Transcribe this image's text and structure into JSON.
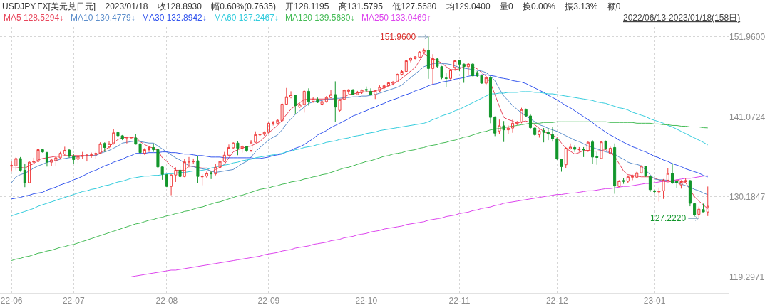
{
  "chart_data": {
    "type": "candlestick",
    "title": "USDJPY.FX[美元兑日元] 2023/01/18 收128.8930 幅0.60%(0.7635) 开128.1195 高131.5795 低127.5680 均129.0400 量0 换0.00% 振3.13% 额0",
    "subtitle": "2022/06/13-2023/01/18(158日)",
    "categories": [
      "22-06",
      null,
      null,
      null,
      null,
      null,
      null,
      null,
      null,
      null,
      null,
      null,
      null,
      null,
      "22-07",
      null,
      null,
      null,
      null,
      null,
      null,
      null,
      null,
      null,
      null,
      null,
      null,
      null,
      null,
      null,
      null,
      null,
      null,
      null,
      null,
      "22-08",
      null,
      null,
      null,
      null,
      null,
      null,
      null,
      null,
      null,
      null,
      null,
      null,
      null,
      null,
      null,
      null,
      null,
      null,
      null,
      null,
      null,
      null,
      "22-09",
      null,
      null,
      null,
      null,
      null,
      null,
      null,
      null,
      null,
      null,
      null,
      null,
      null,
      null,
      null,
      null,
      null,
      null,
      null,
      null,
      null,
      "22-10",
      null,
      null,
      null,
      null,
      null,
      null,
      null,
      null,
      null,
      null,
      null,
      null,
      null,
      null,
      null,
      null,
      null,
      null,
      null,
      null,
      "22-11",
      null,
      null,
      null,
      null,
      null,
      null,
      null,
      null,
      null,
      null,
      null,
      null,
      null,
      null,
      null,
      null,
      null,
      null,
      null,
      null,
      null,
      "22-12",
      null,
      null,
      null,
      null,
      null,
      null,
      null,
      null,
      null,
      null,
      null,
      null,
      null,
      null,
      null,
      null,
      null,
      null,
      null,
      null,
      null,
      "23-01",
      null,
      null,
      null,
      null,
      null,
      null,
      null,
      null,
      null,
      null,
      null,
      null
    ],
    "ohlc": [
      [
        134.35,
        135.0,
        133.6,
        134.45
      ],
      [
        134.4,
        135.6,
        133.8,
        135.4
      ],
      [
        135.4,
        135.6,
        133.6,
        133.8
      ],
      [
        133.8,
        134.7,
        131.5,
        132.1
      ],
      [
        132.1,
        135.0,
        132.0,
        134.9
      ],
      [
        134.9,
        135.5,
        134.6,
        135.0
      ],
      [
        135.0,
        136.7,
        134.95,
        136.6
      ],
      [
        136.6,
        136.7,
        136.2,
        136.3
      ],
      [
        136.2,
        136.3,
        134.3,
        134.9
      ],
      [
        134.9,
        135.4,
        134.4,
        135.2
      ],
      [
        135.1,
        135.8,
        134.4,
        135.5
      ],
      [
        135.5,
        136.3,
        135.35,
        136.1
      ],
      [
        136.0,
        137.0,
        135.8,
        136.5
      ],
      [
        136.55,
        136.65,
        135.5,
        135.7
      ],
      [
        135.7,
        136.0,
        134.7,
        135.25
      ],
      [
        135.3,
        135.85,
        134.7,
        135.7
      ],
      [
        135.7,
        136.3,
        135.35,
        135.8
      ],
      [
        135.75,
        136.0,
        135.0,
        135.85
      ],
      [
        135.8,
        136.2,
        135.5,
        135.9
      ],
      [
        135.95,
        136.3,
        135.35,
        136.1
      ],
      [
        136.15,
        137.6,
        136.05,
        137.4
      ],
      [
        137.45,
        137.6,
        136.3,
        136.9
      ],
      [
        136.95,
        137.8,
        136.8,
        137.4
      ],
      [
        137.4,
        139.4,
        137.3,
        138.9
      ],
      [
        138.95,
        139.15,
        138.4,
        138.5
      ],
      [
        138.5,
        138.6,
        137.9,
        138.1
      ],
      [
        138.2,
        138.4,
        137.45,
        138.3
      ],
      [
        138.2,
        138.35,
        138.15,
        138.3
      ],
      [
        138.2,
        138.7,
        137.3,
        137.35
      ],
      [
        137.4,
        137.8,
        135.7,
        136.2
      ],
      [
        136.1,
        136.8,
        135.9,
        136.6
      ],
      [
        136.6,
        137.0,
        136.3,
        136.9
      ],
      [
        136.9,
        137.45,
        136.3,
        136.6
      ],
      [
        136.6,
        136.65,
        134.1,
        134.25
      ],
      [
        134.25,
        134.3,
        132.5,
        133.25
      ],
      [
        133.2,
        133.25,
        131.5,
        131.6
      ],
      [
        131.6,
        133.25,
        130.4,
        133.15
      ],
      [
        133.15,
        134.2,
        132.2,
        133.8
      ],
      [
        133.8,
        134.4,
        132.8,
        132.95
      ],
      [
        132.95,
        135.35,
        132.85,
        134.95
      ],
      [
        134.9,
        135.6,
        134.2,
        135.0
      ],
      [
        134.95,
        135.4,
        134.7,
        135.05
      ],
      [
        135.1,
        135.7,
        132.05,
        132.95
      ],
      [
        132.9,
        133.25,
        131.75,
        132.95
      ],
      [
        133.0,
        133.6,
        132.8,
        133.4
      ],
      [
        133.45,
        133.7,
        132.6,
        133.3
      ],
      [
        133.3,
        134.7,
        133.1,
        134.2
      ],
      [
        134.2,
        135.4,
        134.05,
        135.0
      ],
      [
        135.0,
        136.3,
        134.9,
        135.85
      ],
      [
        135.85,
        137.3,
        135.7,
        136.9
      ],
      [
        136.85,
        137.6,
        136.65,
        137.5
      ],
      [
        137.5,
        137.8,
        135.85,
        136.8
      ],
      [
        136.8,
        137.2,
        136.2,
        137.05
      ],
      [
        137.05,
        137.1,
        136.3,
        136.5
      ],
      [
        136.5,
        137.9,
        136.3,
        137.6
      ],
      [
        137.6,
        139.1,
        137.55,
        138.65
      ],
      [
        138.6,
        138.9,
        138.2,
        138.7
      ],
      [
        138.7,
        139.1,
        138.5,
        138.95
      ],
      [
        138.95,
        140.35,
        138.85,
        140.2
      ],
      [
        140.2,
        140.5,
        139.9,
        140.25
      ],
      [
        140.2,
        140.7,
        140.05,
        140.6
      ],
      [
        140.55,
        143.0,
        140.35,
        142.8
      ],
      [
        142.8,
        145.0,
        142.75,
        143.8
      ],
      [
        143.75,
        144.55,
        143.6,
        144.05
      ],
      [
        144.05,
        144.1,
        141.5,
        142.6
      ],
      [
        142.4,
        142.9,
        142.3,
        142.75
      ],
      [
        142.75,
        144.7,
        141.65,
        144.55
      ],
      [
        144.55,
        144.95,
        142.6,
        143.15
      ],
      [
        143.2,
        143.8,
        143.0,
        143.5
      ],
      [
        143.45,
        143.7,
        142.95,
        143.05
      ],
      [
        142.8,
        143.35,
        142.6,
        143.15
      ],
      [
        143.15,
        143.9,
        143.0,
        143.7
      ],
      [
        143.7,
        144.7,
        143.6,
        144.1
      ],
      [
        144.1,
        145.9,
        140.35,
        142.4
      ],
      [
        141.95,
        143.5,
        141.8,
        143.4
      ],
      [
        143.45,
        144.8,
        143.35,
        144.7
      ],
      [
        144.55,
        144.85,
        144.2,
        144.75
      ],
      [
        144.75,
        144.85,
        144.05,
        144.1
      ],
      [
        144.1,
        144.6,
        144.05,
        144.45
      ],
      [
        144.4,
        144.8,
        144.2,
        144.7
      ],
      [
        144.8,
        145.2,
        144.4,
        144.7
      ],
      [
        144.55,
        144.95,
        144.05,
        144.1
      ],
      [
        144.1,
        144.7,
        143.5,
        144.6
      ],
      [
        144.6,
        145.35,
        144.45,
        145.1
      ],
      [
        145.0,
        145.5,
        144.8,
        145.3
      ],
      [
        145.3,
        145.85,
        145.2,
        145.7
      ],
      [
        145.65,
        145.95,
        145.35,
        145.8
      ],
      [
        145.8,
        146.95,
        145.75,
        146.85
      ],
      [
        146.85,
        147.45,
        146.7,
        147.25
      ],
      [
        147.25,
        148.85,
        147.2,
        148.7
      ],
      [
        148.75,
        149.2,
        148.5,
        149.05
      ],
      [
        149.0,
        149.3,
        148.9,
        149.25
      ],
      [
        149.2,
        150.0,
        149.05,
        149.9
      ],
      [
        149.9,
        150.35,
        149.85,
        150.15
      ],
      [
        150.15,
        151.96,
        146.25,
        147.65
      ],
      [
        147.65,
        149.6,
        145.5,
        149.0
      ],
      [
        148.95,
        149.05,
        147.75,
        147.95
      ],
      [
        147.9,
        148.0,
        146.2,
        146.4
      ],
      [
        146.35,
        147.0,
        145.1,
        146.3
      ],
      [
        146.3,
        147.55,
        146.0,
        147.45
      ],
      [
        147.8,
        148.8,
        147.35,
        148.7
      ],
      [
        148.7,
        148.75,
        147.3,
        148.25
      ],
      [
        148.25,
        148.3,
        145.7,
        147.9
      ],
      [
        147.9,
        148.4,
        146.8,
        148.25
      ],
      [
        148.25,
        148.35,
        146.6,
        146.65
      ],
      [
        147.1,
        147.3,
        146.5,
        146.65
      ],
      [
        146.7,
        146.8,
        145.6,
        145.65
      ],
      [
        145.65,
        146.6,
        145.35,
        146.4
      ],
      [
        146.4,
        146.6,
        140.2,
        141.0
      ],
      [
        141.0,
        141.15,
        138.45,
        138.85
      ],
      [
        139.15,
        140.7,
        138.75,
        139.85
      ],
      [
        139.85,
        140.5,
        137.65,
        139.3
      ],
      [
        139.3,
        139.9,
        138.75,
        139.55
      ],
      [
        139.55,
        140.7,
        138.9,
        140.2
      ],
      [
        140.15,
        140.5,
        139.95,
        140.35
      ],
      [
        140.35,
        142.3,
        140.2,
        142.05
      ],
      [
        142.05,
        142.2,
        141.1,
        141.2
      ],
      [
        141.2,
        141.5,
        139.4,
        139.6
      ],
      [
        139.55,
        139.6,
        138.5,
        138.65
      ],
      [
        138.65,
        139.3,
        138.25,
        139.15
      ],
      [
        139.2,
        139.55,
        137.6,
        138.95
      ],
      [
        138.95,
        139.55,
        137.9,
        138.75
      ],
      [
        138.65,
        139.7,
        137.7,
        138.1
      ],
      [
        138.1,
        138.15,
        135.2,
        135.35
      ],
      [
        135.3,
        135.35,
        133.6,
        134.3
      ],
      [
        134.55,
        136.95,
        134.1,
        136.8
      ],
      [
        136.7,
        137.45,
        136.6,
        136.95
      ],
      [
        136.9,
        137.2,
        136.3,
        136.65
      ],
      [
        136.6,
        136.95,
        136.3,
        136.7
      ],
      [
        136.7,
        136.95,
        135.6,
        136.6
      ],
      [
        136.5,
        137.7,
        136.3,
        137.6
      ],
      [
        137.65,
        137.9,
        134.65,
        135.6
      ],
      [
        135.65,
        136.3,
        134.55,
        135.55
      ],
      [
        135.4,
        137.8,
        135.3,
        137.65
      ],
      [
        137.75,
        137.85,
        136.6,
        136.7
      ],
      [
        136.05,
        137.0,
        135.95,
        136.8
      ],
      [
        136.9,
        137.45,
        130.6,
        131.65
      ],
      [
        131.6,
        132.45,
        131.5,
        132.35
      ],
      [
        132.4,
        132.7,
        131.95,
        132.3
      ],
      [
        132.3,
        133.1,
        132.1,
        132.9
      ],
      [
        132.85,
        133.2,
        132.45,
        132.95
      ],
      [
        132.85,
        133.6,
        132.7,
        133.45
      ],
      [
        133.45,
        134.45,
        133.35,
        134.35
      ],
      [
        134.35,
        134.4,
        132.9,
        133.0
      ],
      [
        132.95,
        133.1,
        130.85,
        131.15
      ],
      [
        131.0,
        131.1,
        130.7,
        130.9
      ],
      [
        130.85,
        131.45,
        129.55,
        130.95
      ],
      [
        131.0,
        132.6,
        129.9,
        132.45
      ],
      [
        132.45,
        134.05,
        132.3,
        133.35
      ],
      [
        133.35,
        134.75,
        131.95,
        132.05
      ],
      [
        132.3,
        132.45,
        131.35,
        132.1
      ],
      [
        131.8,
        132.45,
        131.3,
        132.25
      ],
      [
        132.25,
        132.7,
        132.1,
        132.4
      ],
      [
        132.4,
        132.45,
        128.9,
        129.3
      ],
      [
        129.25,
        129.3,
        127.5,
        127.75
      ],
      [
        127.8,
        128.85,
        127.222,
        128.5
      ],
      [
        128.45,
        129.25,
        128.1,
        128.1295
      ],
      [
        128.1195,
        131.5795,
        127.568,
        128.893
      ]
    ],
    "colors": [
      "#ef3b3b",
      "#ef3b3b",
      "#12962b",
      "#12962b",
      "#ef3b3b",
      "#ef3b3b",
      "#ef3b3b",
      "#12962b",
      "#12962b",
      "#ef3b3b",
      "#ef3b3b",
      "#ef3b3b",
      "#ef3b3b",
      "#12962b",
      "#12962b",
      "#ef3b3b",
      "#ef3b3b",
      "#ef3b3b",
      "#ef3b3b",
      "#ef3b3b",
      "#ef3b3b",
      "#12962b",
      "#ef3b3b",
      "#ef3b3b",
      "#12962b",
      "#12962b",
      "#ef3b3b",
      "#ef3b3b",
      "#12962b",
      "#12962b",
      "#ef3b3b",
      "#ef3b3b",
      "#12962b",
      "#12962b",
      "#12962b",
      "#12962b",
      "#ef3b3b",
      "#ef3b3b",
      "#12962b",
      "#ef3b3b",
      "#ef3b3b",
      "#ef3b3b",
      "#12962b",
      "#ef3b3b",
      "#ef3b3b",
      "#12962b",
      "#ef3b3b",
      "#ef3b3b",
      "#ef3b3b",
      "#ef3b3b",
      "#ef3b3b",
      "#12962b",
      "#ef3b3b",
      "#12962b",
      "#ef3b3b",
      "#ef3b3b",
      "#ef3b3b",
      "#ef3b3b",
      "#ef3b3b",
      "#ef3b3b",
      "#ef3b3b",
      "#ef3b3b",
      "#ef3b3b",
      "#ef3b3b",
      "#12962b",
      "#ef3b3b",
      "#ef3b3b",
      "#12962b",
      "#ef3b3b",
      "#12962b",
      "#ef3b3b",
      "#ef3b3b",
      "#ef3b3b",
      "#12962b",
      "#ef3b3b",
      "#ef3b3b",
      "#ef3b3b",
      "#12962b",
      "#ef3b3b",
      "#ef3b3b",
      "#12962b",
      "#12962b",
      "#ef3b3b",
      "#ef3b3b",
      "#ef3b3b",
      "#ef3b3b",
      "#ef3b3b",
      "#ef3b3b",
      "#ef3b3b",
      "#ef3b3b",
      "#ef3b3b",
      "#ef3b3b",
      "#ef3b3b",
      "#ef3b3b",
      "#12962b",
      "#ef3b3b",
      "#12962b",
      "#12962b",
      "#12962b",
      "#ef3b3b",
      "#ef3b3b",
      "#12962b",
      "#12962b",
      "#ef3b3b",
      "#12962b",
      "#12962b",
      "#12962b",
      "#ef3b3b",
      "#12962b",
      "#12962b",
      "#ef3b3b",
      "#12962b",
      "#ef3b3b",
      "#ef3b3b",
      "#ef3b3b",
      "#ef3b3b",
      "#12962b",
      "#12962b",
      "#12962b",
      "#ef3b3b",
      "#12962b",
      "#12962b",
      "#12962b",
      "#12962b",
      "#12962b",
      "#ef3b3b",
      "#ef3b3b",
      "#12962b",
      "#ef3b3b",
      "#12962b",
      "#ef3b3b",
      "#12962b",
      "#12962b",
      "#ef3b3b",
      "#12962b",
      "#ef3b3b",
      "#12962b",
      "#ef3b3b",
      "#12962b",
      "#ef3b3b",
      "#ef3b3b",
      "#ef3b3b",
      "#ef3b3b",
      "#12962b",
      "#12962b",
      "#12962b",
      "#ef3b3b",
      "#ef3b3b",
      "#ef3b3b",
      "#12962b",
      "#12962b",
      "#ef3b3b",
      "#ef3b3b",
      "#12962b",
      "#12962b",
      "#ef3b3b",
      "#12962b",
      "#ef3b3b"
    ],
    "series": [
      {
        "name": "MA5 128.5294↓",
        "type": "line",
        "color": "#e8475c",
        "values": [
          134.1,
          134.1,
          134.2,
          134.1,
          134.4,
          134.7,
          135.2,
          135.4,
          135.5,
          135.6,
          135.7,
          135.7,
          135.8,
          135.8,
          135.8,
          135.8,
          135.8,
          135.8,
          135.8,
          135.8,
          136.2,
          136.5,
          137.0,
          137.5,
          138.0,
          138.2,
          138.3,
          138.3,
          138.3,
          137.7,
          137.3,
          137.0,
          136.8,
          136.5,
          135.5,
          135.0,
          134.4,
          133.8,
          133.8,
          133.8,
          134.4,
          134.3,
          134.2,
          134.1,
          134.1,
          133.5,
          133.9,
          134.2,
          134.6,
          135.5,
          136.3,
          136.6,
          136.8,
          137.0,
          137.1,
          137.4,
          137.7,
          138.3,
          138.9,
          139.4,
          139.9,
          140.6,
          141.4,
          142.1,
          142.6,
          143.0,
          143.4,
          143.5,
          143.5,
          143.5,
          143.5,
          143.5,
          143.5,
          143.4,
          143.4,
          143.7,
          144.1,
          144.2,
          144.3,
          144.4,
          144.5,
          144.5,
          144.6,
          144.8,
          145.0,
          145.3,
          145.5,
          145.9,
          146.3,
          146.8,
          147.3,
          147.8,
          148.7,
          149.7,
          149.2,
          149.0,
          148.7,
          148.4,
          147.9,
          147.5,
          147.5,
          147.6,
          147.9,
          148.3,
          147.9,
          147.6,
          147.1,
          146.6,
          145.7,
          144.1,
          142.5,
          141.0,
          140.7,
          140.5,
          140.2,
          140.4,
          140.5,
          140.3,
          140.0,
          139.5,
          139.1,
          138.8,
          138.5,
          138.3,
          137.5,
          136.8,
          136.4,
          136.0,
          136.2,
          136.5,
          136.5,
          136.4,
          136.4,
          136.5,
          136.6,
          136.2,
          135.7,
          134.7,
          133.7,
          133.2,
          133.1,
          133.0,
          132.9,
          132.9,
          132.9,
          132.7,
          132.5,
          132.3,
          132.2,
          132.3,
          132.5,
          132.3,
          132.1,
          131.2,
          130.2,
          129.6,
          129.1,
          128.5294
        ]
      },
      {
        "name": "MA10 130.4779↓",
        "type": "line",
        "color": "#5d8fcc",
        "values": [
          132.1,
          132.9,
          133.2,
          133.4,
          133.7,
          134.1,
          134.4,
          134.6,
          134.9,
          135.0,
          135.1,
          135.3,
          135.4,
          135.5,
          135.6,
          135.7,
          135.7,
          135.8,
          null,
          135.8,
          136.1,
          136.3,
          136.5,
          136.8,
          137.1,
          137.5,
          137.6,
          137.7,
          137.8,
          137.7,
          137.6,
          137.5,
          137.5,
          137.1,
          136.7,
          136.3,
          135.9,
          135.5,
          135.2,
          134.8,
          134.4,
          134.3,
          134.1,
          134.0,
          133.9,
          133.7,
          133.5,
          133.6,
          133.7,
          133.8,
          133.9,
          134.3,
          134.7,
          135.0,
          135.6,
          136.3,
          136.9,
          137.4,
          137.9,
          138.3,
          138.6,
          139.3,
          140.1,
          140.8,
          141.4,
          141.9,
          142.4,
          142.9,
          143.1,
          143.2,
          143.3,
          143.5,
          143.5,
          143.6,
          143.6,
          143.7,
          143.7,
          143.8,
          143.8,
          143.9,
          143.9,
          144.0,
          144.1,
          144.3,
          144.5,
          144.7,
          144.9,
          145.1,
          145.4,
          145.9,
          146.4,
          146.9,
          147.4,
          147.9,
          148.1,
          148.3,
          148.4,
          148.3,
          148.3,
          148.2,
          148.0,
          147.8,
          147.7,
          147.6,
          147.5,
          147.4,
          147.3,
          147.1,
          146.6,
          146.0,
          144.9,
          143.9,
          143.3,
          142.6,
          142.1,
          141.6,
          141.2,
          140.8,
          140.4,
          140.0,
          139.8,
          139.5,
          139.3,
          139.1,
          138.8,
          138.5,
          138.2,
          137.9,
          137.7,
          137.4,
          137.1,
          136.9,
          136.7,
          136.5,
          136.3,
          136.2,
          136.0,
          135.6,
          135.3,
          134.9,
          134.7,
          134.6,
          134.4,
          133.8,
          133.2,
          132.6,
          132.5,
          132.5,
          132.4,
          132.3,
          132.1,
          131.9,
          131.7,
          131.5,
          131.2,
          131.0,
          130.7,
          130.4779
        ]
      },
      {
        "name": "MA30 132.8942↓",
        "type": "line",
        "color": "#3355ee",
        "values": [
          129.9,
          130.0,
          130.1,
          130.3,
          130.4,
          130.6,
          130.7,
          130.8,
          131.1,
          131.3,
          131.5,
          131.8,
          132.0,
          132.2,
          132.5,
          132.7,
          133.0,
          133.3,
          133.6,
          133.8,
          134.1,
          134.4,
          134.6,
          134.9,
          135.1,
          135.3,
          135.6,
          135.8,
          136.1,
          136.1,
          136.1,
          136.2,
          136.2,
          136.2,
          136.3,
          136.3,
          136.2,
          136.2,
          136.1,
          136.0,
          136.0,
          135.9,
          135.8,
          135.8,
          135.7,
          135.6,
          135.6,
          135.6,
          135.5,
          135.5,
          135.5,
          135.5,
          135.5,
          135.5,
          135.5,
          135.4,
          135.4,
          135.5,
          135.6,
          135.8,
          135.9,
          136.0,
          136.3,
          136.5,
          136.8,
          137.0,
          137.3,
          137.7,
          138.1,
          138.6,
          138.9,
          139.2,
          139.6,
          139.9,
          140.2,
          140.5,
          140.8,
          141.2,
          141.4,
          141.7,
          141.9,
          142.2,
          142.4,
          142.7,
          142.9,
          143.2,
          143.4,
          143.6,
          143.9,
          144.1,
          144.3,
          144.6,
          144.8,
          145.0,
          145.3,
          145.5,
          145.6,
          145.8,
          145.9,
          146.0,
          146.2,
          146.3,
          146.4,
          146.6,
          146.7,
          146.7,
          146.8,
          146.8,
          146.7,
          146.6,
          146.4,
          146.3,
          146.2,
          146.0,
          145.9,
          145.8,
          145.6,
          145.3,
          145.0,
          144.7,
          144.4,
          144.0,
          143.7,
          143.4,
          143.0,
          142.6,
          142.3,
          141.9,
          141.5,
          141.1,
          140.7,
          140.3,
          139.8,
          139.4,
          139.0,
          138.6,
          138.3,
          137.9,
          137.6,
          137.3,
          137.0,
          136.8,
          136.5,
          136.3,
          136.0,
          135.7,
          135.5,
          135.2,
          135.0,
          134.7,
          134.5,
          134.3,
          134.0,
          133.8,
          133.6,
          133.4,
          133.1,
          132.8942
        ]
      },
      {
        "name": "MA60 137.2467↓",
        "type": "line",
        "color": "#33ccdd",
        "values": [
          127.6,
          127.8,
          128.0,
          128.2,
          128.4,
          128.6,
          128.9,
          129.1,
          129.3,
          129.5,
          129.7,
          129.9,
          130.1,
          130.3,
          130.5,
          130.7,
          130.9,
          131.0,
          131.2,
          131.3,
          131.5,
          131.7,
          131.8,
          132.0,
          132.2,
          132.3,
          132.5,
          132.7,
          132.8,
          132.9,
          133.0,
          133.0,
          133.1,
          133.1,
          133.2,
          133.3,
          133.3,
          133.4,
          133.5,
          133.5,
          133.6,
          133.7,
          133.7,
          133.8,
          133.9,
          134.1,
          134.2,
          134.4,
          134.5,
          134.6,
          134.8,
          134.9,
          135.1,
          135.2,
          135.3,
          135.5,
          135.6,
          135.7,
          135.8,
          135.9,
          136.0,
          136.1,
          136.3,
          136.4,
          136.6,
          136.7,
          136.9,
          137.0,
          137.1,
          137.3,
          137.4,
          137.6,
          137.7,
          137.8,
          138.0,
          138.1,
          138.2,
          138.4,
          138.5,
          138.6,
          138.8,
          138.9,
          139.0,
          139.2,
          139.3,
          139.4,
          139.5,
          139.6,
          139.7,
          139.8,
          139.9,
          140.0,
          140.1,
          140.2,
          140.4,
          140.7,
          140.9,
          141.2,
          141.4,
          141.6,
          141.9,
          142.1,
          142.4,
          142.7,
          143.0,
          143.3,
          143.6,
          143.9,
          144.2,
          144.2,
          144.3,
          144.3,
          144.4,
          144.4,
          144.4,
          144.5,
          144.5,
          144.5,
          144.4,
          144.4,
          144.3,
          144.2,
          144.2,
          144.1,
          144.0,
          143.9,
          143.8,
          143.7,
          143.6,
          143.5,
          143.4,
          143.3,
          143.1,
          143.0,
          142.9,
          142.7,
          142.5,
          142.3,
          142.2,
          142.0,
          141.7,
          141.5,
          141.3,
          141.1,
          140.8,
          140.6,
          140.4,
          140.2,
          139.9,
          139.7,
          139.4,
          139.1,
          138.8,
          138.5,
          138.2,
          137.9,
          137.6,
          137.2467
        ]
      },
      {
        "name": "MA120 139.5680↓",
        "type": "line",
        "color": "#44bb55",
        "values": [
          121.5,
          121.7,
          121.8,
          122.0,
          122.1,
          122.3,
          122.5,
          122.6,
          122.8,
          122.9,
          123.1,
          123.3,
          123.4,
          123.6,
          123.7,
          123.9,
          124.1,
          124.3,
          124.5,
          124.7,
          124.9,
          125.1,
          125.3,
          125.5,
          125.7,
          125.9,
          126.1,
          126.3,
          126.5,
          126.6,
          126.8,
          127.0,
          127.1,
          127.3,
          127.4,
          127.6,
          127.7,
          127.9,
          128.0,
          128.2,
          128.3,
          128.5,
          128.7,
          128.8,
          129.0,
          129.2,
          129.4,
          129.5,
          129.7,
          129.9,
          130.1,
          130.3,
          130.4,
          130.6,
          130.8,
          131.0,
          131.2,
          131.3,
          131.4,
          131.6,
          131.7,
          131.9,
          132.0,
          132.2,
          132.3,
          132.4,
          132.6,
          132.7,
          132.9,
          133.0,
          133.2,
          133.3,
          133.5,
          133.7,
          133.9,
          134.1,
          134.2,
          134.4,
          134.6,
          134.8,
          135.0,
          135.1,
          135.3,
          135.5,
          135.7,
          135.8,
          136.0,
          136.1,
          136.2,
          136.4,
          136.5,
          136.6,
          136.8,
          136.9,
          137.1,
          137.2,
          137.3,
          137.5,
          137.6,
          137.8,
          137.9,
          138.1,
          138.3,
          138.4,
          138.6,
          138.8,
          139.0,
          139.1,
          139.3,
          139.4,
          139.5,
          139.6,
          139.7,
          139.8,
          139.9,
          140.0,
          140.1,
          140.2,
          140.2,
          140.2,
          140.3,
          140.3,
          140.3,
          140.4,
          140.4,
          140.4,
          140.4,
          140.4,
          140.4,
          140.4,
          140.4,
          140.4,
          140.4,
          140.4,
          140.4,
          140.3,
          140.3,
          140.3,
          140.3,
          140.3,
          140.3,
          140.2,
          140.2,
          140.2,
          140.2,
          140.1,
          140.1,
          140.0,
          140.0,
          139.9,
          139.9,
          139.8,
          139.8,
          139.7,
          139.7,
          139.7,
          139.6,
          139.568
        ]
      },
      {
        "name": "MA250 133.0469↑",
        "type": "line",
        "color": "#dd44ee",
        "values": [
          null,
          null,
          null,
          null,
          null,
          null,
          null,
          null,
          null,
          null,
          null,
          null,
          null,
          null,
          null,
          null,
          null,
          null,
          null,
          null,
          null,
          null,
          null,
          null,
          null,
          null,
          null,
          119.3,
          119.4,
          119.5,
          119.6,
          119.7,
          119.8,
          119.9,
          120.0,
          120.1,
          120.2,
          120.2,
          120.3,
          120.4,
          120.5,
          120.6,
          120.7,
          120.8,
          120.9,
          121.0,
          121.1,
          121.2,
          121.3,
          121.4,
          121.5,
          121.6,
          121.7,
          121.8,
          121.9,
          122.0,
          122.1,
          122.3,
          122.4,
          122.5,
          122.6,
          122.8,
          122.9,
          123.0,
          123.2,
          123.3,
          123.4,
          123.5,
          123.7,
          123.8,
          123.9,
          124.0,
          124.2,
          124.3,
          124.4,
          124.6,
          124.7,
          124.8,
          125.0,
          125.1,
          125.2,
          125.4,
          125.5,
          125.6,
          125.8,
          125.9,
          126.0,
          126.1,
          126.2,
          126.4,
          126.5,
          126.6,
          126.7,
          126.8,
          127.0,
          127.1,
          127.2,
          127.3,
          127.5,
          127.6,
          127.7,
          127.9,
          128.0,
          128.1,
          128.3,
          128.4,
          128.6,
          128.7,
          128.8,
          129.0,
          129.1,
          129.3,
          129.4,
          129.5,
          129.6,
          129.7,
          129.8,
          129.9,
          130.0,
          130.1,
          130.2,
          130.3,
          130.4,
          130.5,
          130.5,
          130.6,
          130.7,
          130.7,
          130.8,
          130.9,
          131.0,
          131.0,
          131.1,
          131.2,
          131.3,
          131.3,
          131.4,
          131.5,
          131.6,
          131.6,
          131.7,
          131.8,
          131.9,
          132.0,
          132.0,
          132.1,
          132.2,
          132.3,
          132.3,
          132.4,
          132.5,
          132.6,
          132.7,
          132.7,
          132.8,
          132.9,
          133.0,
          133.0469
        ]
      }
    ],
    "annotations": [
      "151.9600",
      "127.2220"
    ],
    "ylim": [
      117.1,
      153.3
    ],
    "yticks": [
      {
        "value": 151.96,
        "label": "151.9600"
      },
      {
        "value": 141.0724,
        "label": "141.0724"
      },
      {
        "value": 130.1847,
        "label": "130.1847"
      },
      {
        "value": 119.2971,
        "label": "119.2971"
      }
    ],
    "grid": true,
    "legend": "top left"
  }
}
